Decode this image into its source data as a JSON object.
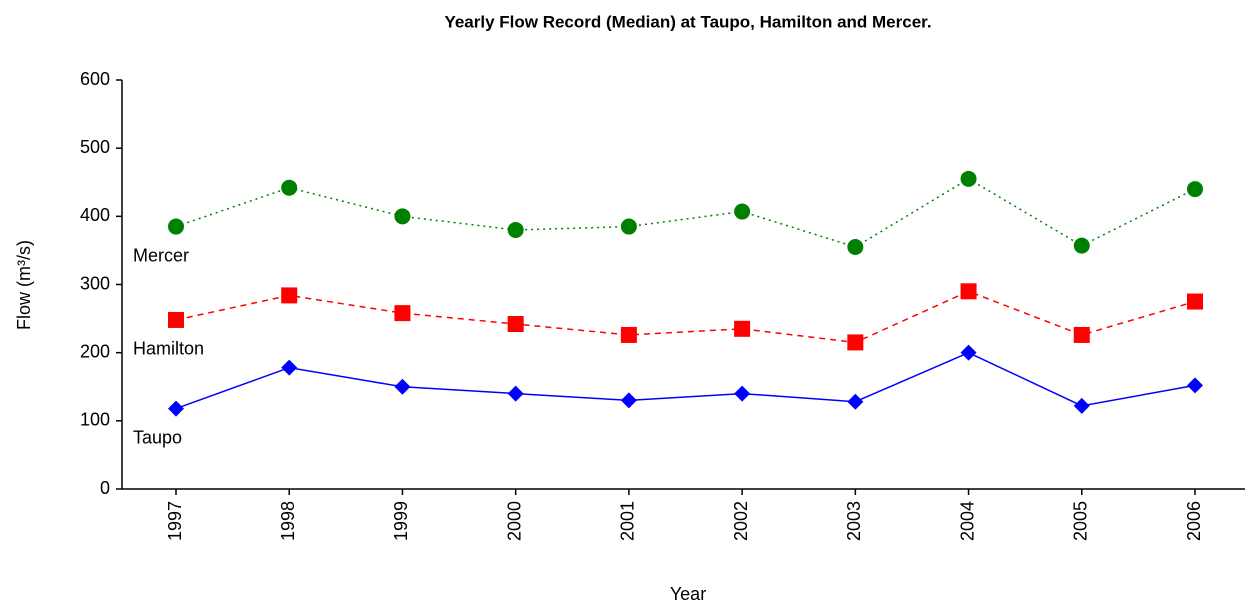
{
  "chart_data": {
    "type": "line",
    "title": "Yearly Flow Record (Median) at Taupo, Hamilton and Mercer.",
    "x_label": "Year",
    "y_label": "Flow (m³/s)",
    "categories": [
      "1997",
      "1998",
      "1999",
      "2000",
      "2001",
      "2002",
      "2003",
      "2004",
      "2005",
      "2006"
    ],
    "series": [
      {
        "name": "Mercer",
        "color": "#008000",
        "marker": "circle",
        "line_style": "dotted",
        "values": [
          385,
          442,
          400,
          380,
          385,
          407,
          355,
          455,
          357,
          440
        ]
      },
      {
        "name": "Hamilton",
        "color": "#ff0000",
        "marker": "square",
        "line_style": "dashed",
        "values": [
          248,
          284,
          258,
          242,
          226,
          235,
          215,
          290,
          226,
          275
        ]
      },
      {
        "name": "Taupo",
        "color": "#0000ff",
        "marker": "diamond",
        "line_style": "solid",
        "values": [
          118,
          178,
          150,
          140,
          130,
          140,
          128,
          200,
          122,
          152
        ]
      }
    ],
    "ylim": [
      0,
      600
    ],
    "yticks": [
      0,
      100,
      200,
      300,
      400,
      500,
      600
    ]
  }
}
